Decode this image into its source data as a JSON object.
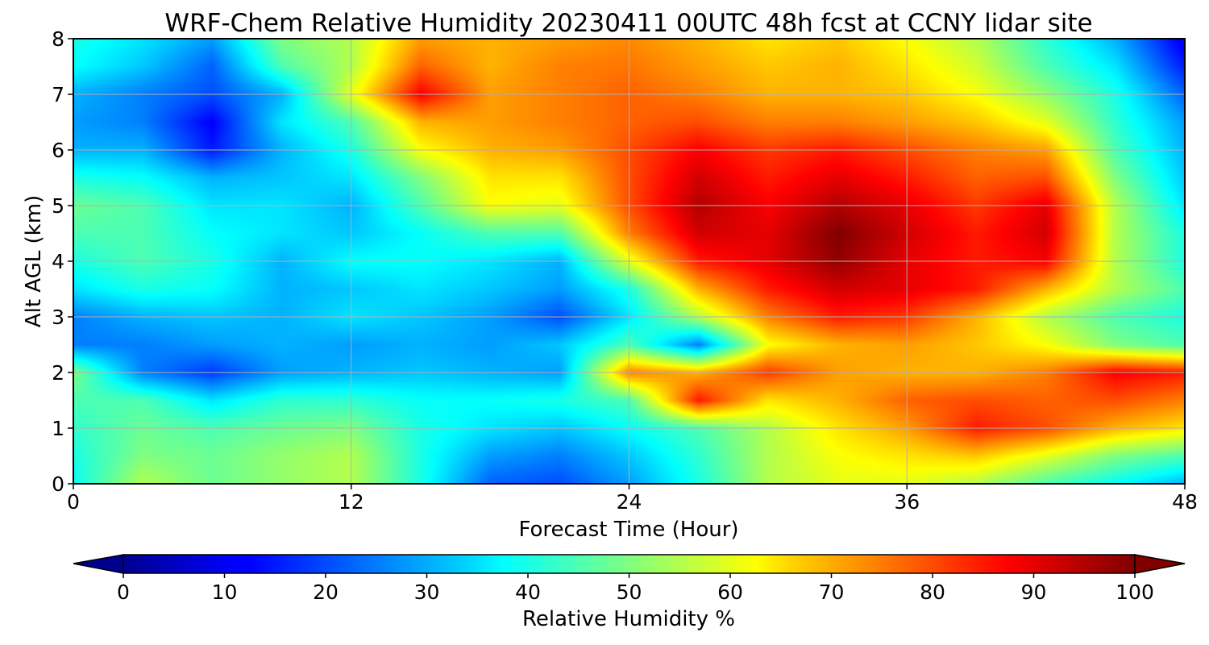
{
  "chart_data": {
    "type": "heatmap",
    "title": "WRF-Chem Relative Humidity 20230411 00UTC 48h fcst at CCNY lidar site",
    "xlabel": "Forecast Time (Hour)",
    "ylabel": "Alt AGL (km)",
    "xlim": [
      0,
      48
    ],
    "ylim": [
      0,
      8
    ],
    "xticks": [
      0,
      12,
      24,
      36,
      48
    ],
    "yticks": [
      0,
      1,
      2,
      3,
      4,
      5,
      6,
      7,
      8
    ],
    "grid": true,
    "colormap": "jet",
    "colorbar": {
      "label": "Relative Humidity %",
      "min": 0,
      "max": 100,
      "ticks": [
        0,
        10,
        20,
        30,
        40,
        50,
        60,
        70,
        80,
        90,
        100
      ],
      "extend": "both",
      "orientation": "horizontal",
      "placement": "bottom"
    },
    "x": [
      0,
      3,
      6,
      9,
      12,
      15,
      18,
      21,
      24,
      27,
      30,
      33,
      36,
      39,
      42,
      45,
      48
    ],
    "y": [
      0,
      0.5,
      1,
      1.5,
      2,
      2.5,
      3,
      3.5,
      4,
      4.5,
      5,
      5.5,
      6,
      6.5,
      7,
      7.5,
      8
    ],
    "z": [
      [
        38,
        55,
        48,
        52,
        55,
        40,
        22,
        20,
        28,
        40,
        55,
        60,
        60,
        55,
        45,
        38,
        30
      ],
      [
        40,
        50,
        48,
        52,
        55,
        40,
        28,
        25,
        32,
        42,
        55,
        62,
        65,
        68,
        60,
        50,
        45
      ],
      [
        42,
        48,
        45,
        48,
        50,
        40,
        35,
        32,
        38,
        45,
        55,
        65,
        72,
        85,
        80,
        70,
        65
      ],
      [
        45,
        45,
        35,
        42,
        42,
        38,
        38,
        40,
        45,
        85,
        65,
        70,
        78,
        80,
        78,
        80,
        75
      ],
      [
        50,
        25,
        18,
        28,
        30,
        32,
        30,
        28,
        75,
        70,
        82,
        72,
        70,
        70,
        75,
        88,
        85
      ],
      [
        25,
        25,
        28,
        30,
        28,
        30,
        28,
        32,
        45,
        25,
        62,
        70,
        72,
        68,
        62,
        50,
        45
      ],
      [
        25,
        30,
        32,
        30,
        35,
        32,
        28,
        20,
        35,
        55,
        75,
        85,
        82,
        70,
        55,
        45,
        40
      ],
      [
        35,
        40,
        38,
        30,
        32,
        35,
        32,
        28,
        40,
        70,
        85,
        92,
        90,
        85,
        70,
        55,
        45
      ],
      [
        40,
        45,
        40,
        30,
        38,
        38,
        35,
        30,
        60,
        85,
        90,
        98,
        90,
        85,
        88,
        55,
        40
      ],
      [
        45,
        45,
        38,
        35,
        32,
        38,
        45,
        45,
        75,
        92,
        90,
        100,
        92,
        85,
        92,
        55,
        40
      ],
      [
        48,
        45,
        35,
        35,
        30,
        45,
        62,
        60,
        80,
        95,
        88,
        95,
        90,
        82,
        90,
        55,
        35
      ],
      [
        40,
        38,
        30,
        32,
        35,
        50,
        65,
        65,
        80,
        92,
        85,
        90,
        85,
        78,
        80,
        50,
        32
      ],
      [
        30,
        30,
        15,
        30,
        40,
        62,
        70,
        72,
        80,
        88,
        82,
        85,
        80,
        75,
        72,
        45,
        30
      ],
      [
        28,
        25,
        12,
        35,
        45,
        70,
        72,
        75,
        78,
        80,
        75,
        75,
        72,
        68,
        60,
        42,
        28
      ],
      [
        30,
        25,
        20,
        30,
        60,
        88,
        72,
        75,
        78,
        75,
        70,
        70,
        68,
        62,
        52,
        40,
        22
      ],
      [
        38,
        32,
        22,
        45,
        55,
        78,
        70,
        75,
        76,
        72,
        68,
        70,
        65,
        58,
        45,
        35,
        15
      ],
      [
        40,
        35,
        28,
        50,
        55,
        72,
        70,
        72,
        74,
        70,
        65,
        68,
        62,
        55,
        42,
        30,
        10
      ]
    ]
  }
}
